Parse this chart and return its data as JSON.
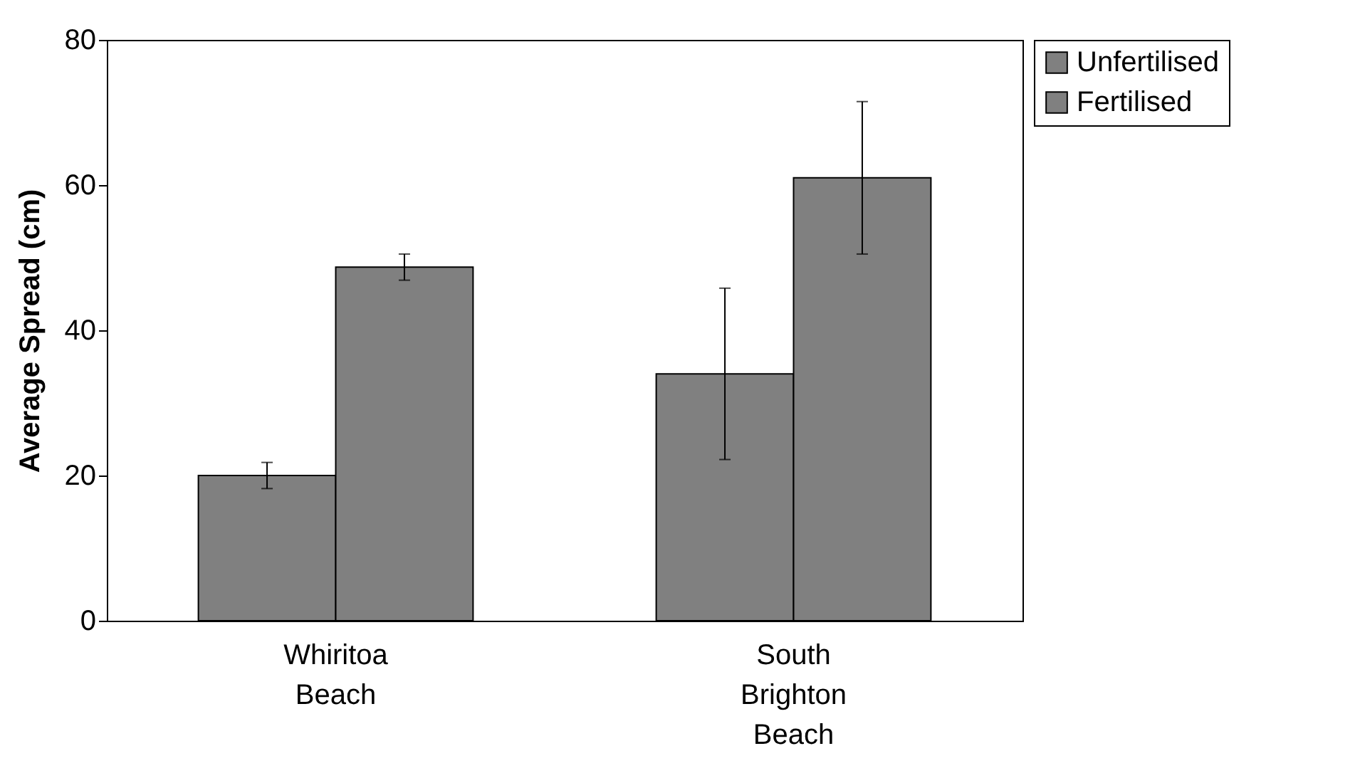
{
  "chart_data": {
    "type": "bar",
    "ylabel": "Average Spread (cm)",
    "categories": [
      "Whiritoa Beach",
      "South Brighton Beach"
    ],
    "series": [
      {
        "name": "Unfertilised",
        "color": "#808080",
        "values": [
          20.0,
          34.0
        ],
        "errors": [
          1.8,
          11.8
        ]
      },
      {
        "name": "Fertilised",
        "color": "#808080",
        "values": [
          48.7,
          61.0
        ],
        "errors": [
          1.8,
          10.5
        ]
      }
    ],
    "ylim": [
      0,
      80
    ],
    "yticks": [
      0,
      20,
      40,
      60,
      80
    ],
    "grid": false,
    "legend": "right"
  }
}
